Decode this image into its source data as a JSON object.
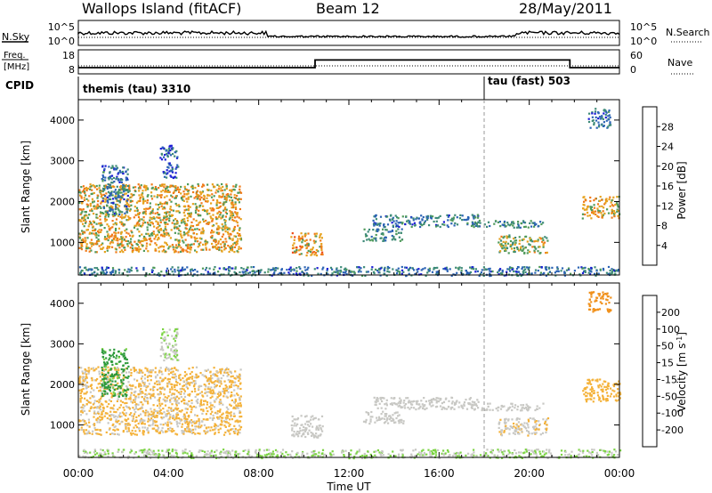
{
  "header": {
    "station": "Wallops Island (fitACF)",
    "beam": "Beam 12",
    "date": "28/May/2011"
  },
  "nsky_panel": {
    "left_label": "N.Sky",
    "left_ticks": [
      "10^5",
      "10^0"
    ],
    "right_ticks": [
      "10^5",
      "10^0"
    ],
    "right_label": "N.Search"
  },
  "freq_panel": {
    "left_label_1": "Freq.",
    "left_label_2": "[MHz]",
    "left_ticks": [
      "18",
      "8"
    ],
    "right_ticks": [
      "60",
      "0"
    ],
    "right_label": "Nave"
  },
  "cpid": {
    "label": "CPID",
    "modes": [
      {
        "name": "themis (tau) 3310",
        "start_hour": 0
      },
      {
        "name": "tau (fast) 503",
        "start_hour": 18
      }
    ]
  },
  "axes": {
    "ylabel": "Slant Range [km]",
    "yticks": [
      "4000",
      "3000",
      "2000",
      "1000"
    ],
    "xlabel": "Time UT",
    "xticks": [
      "00:00",
      "04:00",
      "08:00",
      "12:00",
      "16:00",
      "20:00",
      "00:00"
    ]
  },
  "power_colorbar": {
    "label": "Power [dB]",
    "ticks": [
      "28",
      "24",
      "20",
      "16",
      "12",
      "8",
      "4"
    ]
  },
  "velocity_colorbar": {
    "label_main": "Velocity [m s",
    "label_exp": "-1",
    "label_end": "]",
    "ticks": [
      "200",
      "100",
      "50",
      "15",
      "-15",
      "-50",
      "-100",
      "-200"
    ]
  },
  "chart_data": {
    "type": "heatmap",
    "x_unit": "hours UT",
    "xlim": [
      0,
      24
    ],
    "ylim": [
      200,
      4500
    ],
    "colors": {
      "power": [
        "#1b1bd6",
        "#2b63b4",
        "#3d8a78",
        "#4f9a5a",
        "#e6a21e",
        "#f07a18",
        "#ef4a14",
        "#e81c10"
      ],
      "velocity": [
        "#ec1c10",
        "#ef5a12",
        "#f0901a",
        "#f4b23a",
        "#c8c8c4",
        "#7cd444",
        "#2e9a3c",
        "#2a5a9a",
        "#1b1bd6"
      ]
    },
    "freq_mhz": {
      "steps": [
        {
          "from": 0,
          "to": 10.5,
          "value": 10.5
        },
        {
          "from": 10.5,
          "to": 21.8,
          "value": 14.8
        },
        {
          "from": 21.8,
          "to": 24,
          "value": 10.5
        }
      ]
    },
    "scatter_regions": [
      {
        "x": [
          0,
          7.2
        ],
        "y": [
          780,
          2450
        ],
        "power": 18,
        "velocity": -20
      },
      {
        "x": [
          1.0,
          2.2
        ],
        "y": [
          1700,
          2900
        ],
        "power": 8,
        "velocity": 60
      },
      {
        "x": [
          3.6,
          4.4
        ],
        "y": [
          2600,
          3400
        ],
        "power": 6,
        "velocity": 10
      },
      {
        "x": [
          9.4,
          10.8
        ],
        "y": [
          700,
          1250
        ],
        "power": 20,
        "velocity": 0
      },
      {
        "x": [
          13.0,
          17.8
        ],
        "y": [
          1400,
          1700
        ],
        "power": 8,
        "velocity": 0
      },
      {
        "x": [
          12.6,
          14.4
        ],
        "y": [
          1050,
          1350
        ],
        "power": 10,
        "velocity": 0
      },
      {
        "x": [
          17.4,
          20.6
        ],
        "y": [
          1380,
          1550
        ],
        "power": 10,
        "velocity": 0
      },
      {
        "x": [
          18.6,
          20.8
        ],
        "y": [
          750,
          1200
        ],
        "power": 16,
        "velocity": -10
      },
      {
        "x": [
          22.3,
          24
        ],
        "y": [
          1600,
          2150
        ],
        "power": 18,
        "velocity": -30
      },
      {
        "x": [
          22.6,
          23.6
        ],
        "y": [
          3800,
          4300
        ],
        "power": 8,
        "velocity": -80
      },
      {
        "x": [
          0,
          24
        ],
        "y": [
          200,
          420
        ],
        "power": 8,
        "velocity": 15
      }
    ]
  }
}
